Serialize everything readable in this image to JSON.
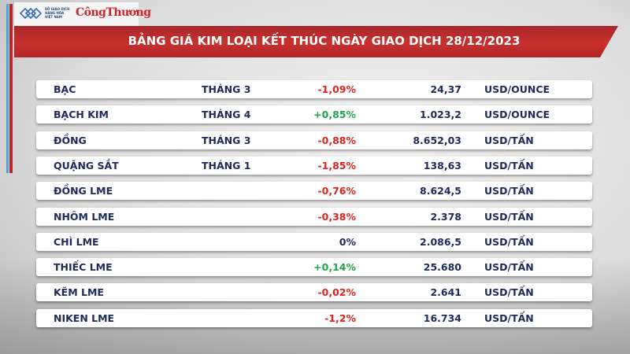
{
  "header": {
    "logo_text": "SỞ GIAO DỊCH HÀNG HÓA VIỆT NAM",
    "brand": "CôngThương",
    "title": "BẢNG GIÁ KIM LOẠI KẾT THÚC NGÀY GIAO DỊCH 28/12/2023"
  },
  "colors": {
    "negative": "#e0221f",
    "positive": "#1ea64a",
    "text": "#1c2a5c",
    "banner": "#c9302f"
  },
  "rows": [
    {
      "name": "BẠC",
      "month": "THÁNG 3",
      "change": "-1,09%",
      "trend": "neg",
      "price": "24,37",
      "unit": "USD/OUNCE"
    },
    {
      "name": "BẠCH KIM",
      "month": "THÁNG 4",
      "change": "+0,85%",
      "trend": "pos",
      "price": "1.023,2",
      "unit": "USD/OUNCE"
    },
    {
      "name": "ĐỒNG",
      "month": "THÁNG 3",
      "change": "-0,88%",
      "trend": "neg",
      "price": "8.652,03",
      "unit": "USD/TẤN"
    },
    {
      "name": "QUẶNG SẮT",
      "month": "THÁNG 1",
      "change": "-1,85%",
      "trend": "neg",
      "price": "138,63",
      "unit": "USD/TẤN"
    },
    {
      "name": "ĐỒNG LME",
      "month": "",
      "change": "-0,76%",
      "trend": "neg",
      "price": "8.624,5",
      "unit": "USD/TẤN"
    },
    {
      "name": "NHÔM LME",
      "month": "",
      "change": "-0,38%",
      "trend": "neg",
      "price": "2.378",
      "unit": "USD/TẤN"
    },
    {
      "name": "CHÌ LME",
      "month": "",
      "change": "0%",
      "trend": "zero",
      "price": "2.086,5",
      "unit": "USD/TẤN"
    },
    {
      "name": "THIẾC LME",
      "month": "",
      "change": "+0,14%",
      "trend": "pos",
      "price": "25.680",
      "unit": "USD/TẤN"
    },
    {
      "name": "KẼM LME",
      "month": "",
      "change": "-0,02%",
      "trend": "neg",
      "price": "2.641",
      "unit": "USD/TẤN"
    },
    {
      "name": "NIKEN LME",
      "month": "",
      "change": "-1,2%",
      "trend": "neg",
      "price": "16.734",
      "unit": "USD/TẤN"
    }
  ]
}
